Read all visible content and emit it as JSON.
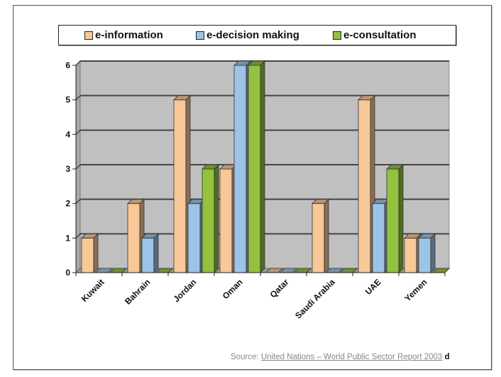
{
  "chart_data": {
    "type": "bar",
    "title": "",
    "xlabel": "",
    "ylabel": "",
    "ylim": [
      0,
      6
    ],
    "yticks": [
      0,
      1,
      2,
      3,
      4,
      5,
      6
    ],
    "grid": true,
    "legend_position": "top",
    "categories": [
      "Kuwait",
      "Bahrain",
      "Jordan",
      "Oman",
      "Qatar",
      "Saudi Arabia",
      "UAE",
      "Yemen"
    ],
    "series": [
      {
        "name": "e-information",
        "color": "#f8c898",
        "values": [
          1,
          2,
          5,
          3,
          0,
          2,
          5,
          1
        ]
      },
      {
        "name": "e-decision making",
        "color": "#9dc3e6",
        "values": [
          0,
          1,
          2,
          6,
          0,
          0,
          2,
          1
        ]
      },
      {
        "name": "e-consultation",
        "color": "#92c23e",
        "values": [
          0,
          0,
          3,
          6,
          0,
          0,
          3,
          0
        ]
      }
    ]
  },
  "legend": {
    "items": [
      {
        "label": "e-information",
        "color": "#f8c898"
      },
      {
        "label": "e-decision making",
        "color": "#9dc3e6"
      },
      {
        "label": "e-consultation",
        "color": "#92c23e"
      }
    ]
  },
  "source": {
    "prefix": "Source: ",
    "link": "United Nations – World Public Sector Report 2003",
    "trail": "d"
  },
  "colors": {
    "plot_background": "#c0c0c0",
    "gridline": "#444444"
  }
}
